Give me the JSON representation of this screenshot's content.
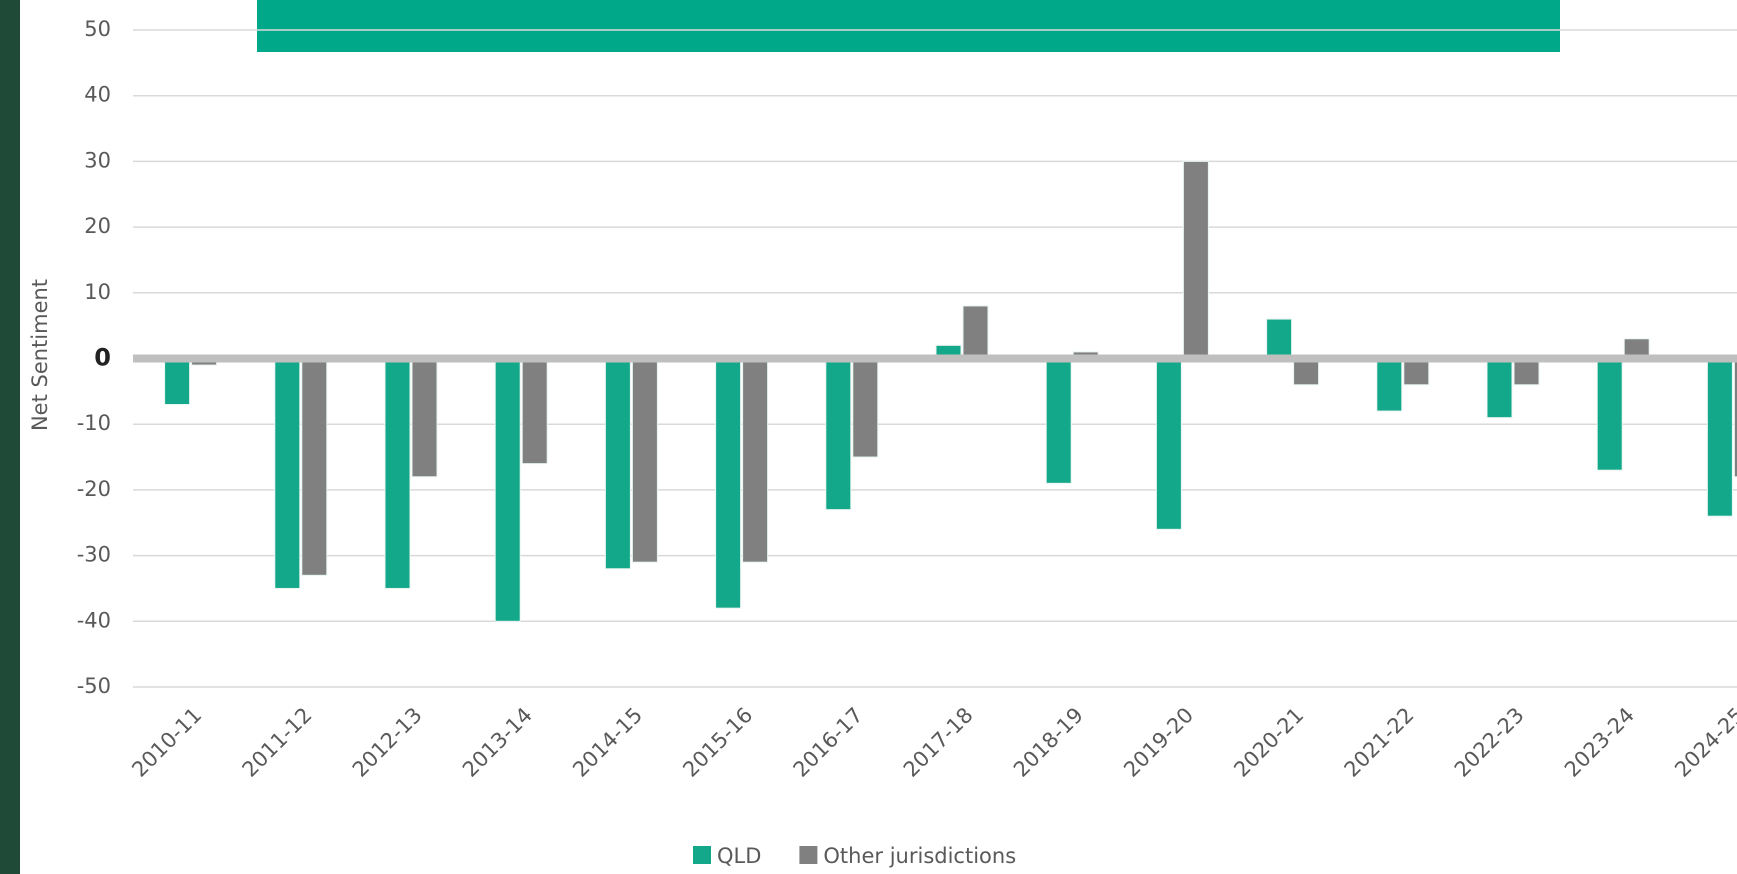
{
  "chart_data": {
    "type": "bar",
    "y_label": "Net Sentiment",
    "categories": [
      "2010-11",
      "2011-12",
      "2012-13",
      "2013-14",
      "2014-15",
      "2015-16",
      "2016-17",
      "2017-18",
      "2018-19",
      "2019-20",
      "2020-21",
      "2021-22",
      "2022-23",
      "2023-24",
      "2024-25"
    ],
    "series": [
      {
        "name": "QLD",
        "color": "#14a88a",
        "values": [
          -7,
          -35,
          -35,
          -40,
          -32,
          -38,
          -23,
          2,
          -19,
          -26,
          6,
          -8,
          -9,
          -17,
          -24
        ]
      },
      {
        "name": "Other jurisdictions",
        "color": "#808080",
        "values": [
          -1,
          -33,
          -18,
          -16,
          -31,
          -31,
          -15,
          8,
          1,
          30,
          -4,
          -4,
          -4,
          3,
          -18
        ]
      }
    ],
    "ylim": [
      -50,
      50
    ],
    "yticks": [
      -50,
      -40,
      -30,
      -20,
      -10,
      0,
      10,
      20,
      30,
      40,
      50
    ],
    "grid": true
  }
}
